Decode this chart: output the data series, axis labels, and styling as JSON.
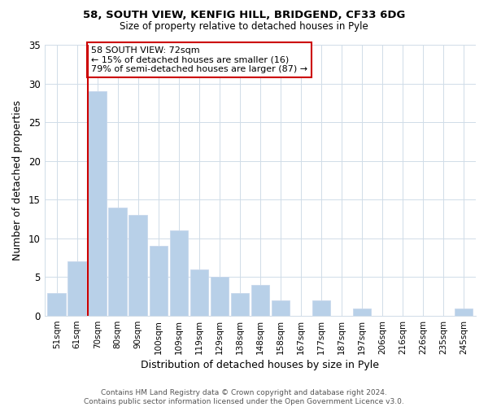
{
  "title1": "58, SOUTH VIEW, KENFIG HILL, BRIDGEND, CF33 6DG",
  "title2": "Size of property relative to detached houses in Pyle",
  "xlabel": "Distribution of detached houses by size in Pyle",
  "ylabel": "Number of detached properties",
  "bar_labels": [
    "51sqm",
    "61sqm",
    "70sqm",
    "80sqm",
    "90sqm",
    "100sqm",
    "109sqm",
    "119sqm",
    "129sqm",
    "138sqm",
    "148sqm",
    "158sqm",
    "167sqm",
    "177sqm",
    "187sqm",
    "197sqm",
    "206sqm",
    "216sqm",
    "226sqm",
    "235sqm",
    "245sqm"
  ],
  "bar_heights": [
    3,
    7,
    29,
    14,
    13,
    9,
    11,
    6,
    5,
    3,
    4,
    2,
    0,
    2,
    0,
    1,
    0,
    0,
    0,
    0,
    1
  ],
  "bar_color": "#b8d0e8",
  "bar_edge_color": "#c8d8ec",
  "property_line_index": 2,
  "annotation_text": "58 SOUTH VIEW: 72sqm\n← 15% of detached houses are smaller (16)\n79% of semi-detached houses are larger (87) →",
  "annotation_box_color": "#ffffff",
  "annotation_box_edge": "#cc0000",
  "property_line_color": "#cc0000",
  "ylim": [
    0,
    35
  ],
  "yticks": [
    0,
    5,
    10,
    15,
    20,
    25,
    30,
    35
  ],
  "footer": "Contains HM Land Registry data © Crown copyright and database right 2024.\nContains public sector information licensed under the Open Government Licence v3.0.",
  "background_color": "#ffffff",
  "grid_color": "#d0dce8"
}
